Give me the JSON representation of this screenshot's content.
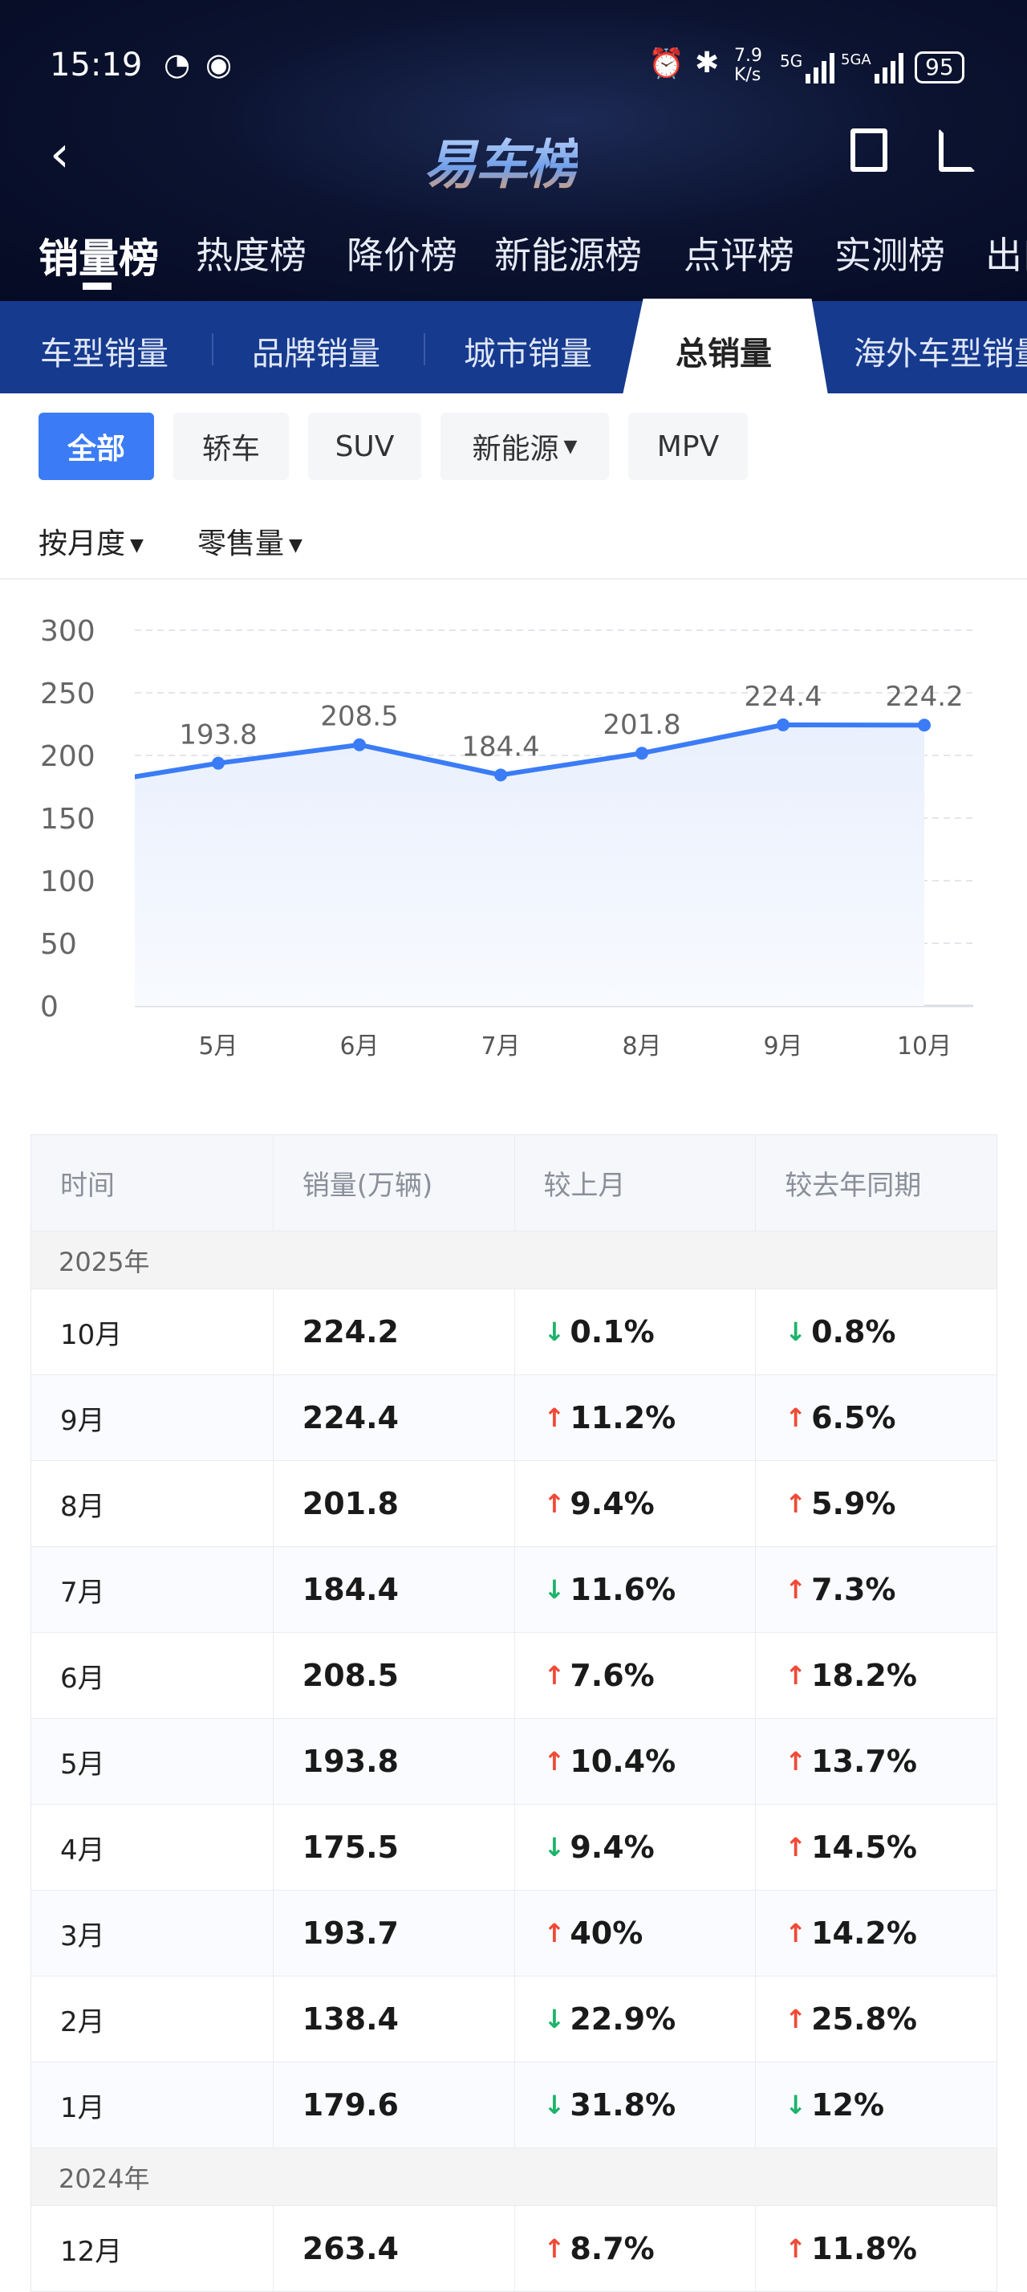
{
  "status_bar": {
    "time": "15:19",
    "net_speed_value": "7.9",
    "net_speed_unit": "K/s",
    "sig1": "5G",
    "sig2": "5GA",
    "battery": "95"
  },
  "header": {
    "title": "易车榜",
    "back_icon": "chevron-left-icon",
    "icons": [
      "edit-note-icon",
      "share-icon"
    ]
  },
  "main_tabs": [
    {
      "label": "销量榜",
      "active": true
    },
    {
      "label": "热度榜"
    },
    {
      "label": "降价榜"
    },
    {
      "label": "新能源榜"
    },
    {
      "label": "点评榜"
    },
    {
      "label": "实测榜"
    },
    {
      "label": "出口"
    }
  ],
  "sub_tabs": [
    {
      "label": "车型销量"
    },
    {
      "label": "品牌销量"
    },
    {
      "label": "城市销量"
    },
    {
      "label": "总销量",
      "active": true
    },
    {
      "label": "海外车型销量"
    }
  ],
  "filters": {
    "chips": [
      {
        "label": "全部",
        "active": true
      },
      {
        "label": "轿车"
      },
      {
        "label": "SUV"
      },
      {
        "label": "新能源",
        "dropdown": true
      },
      {
        "label": "MPV"
      }
    ],
    "period": "按月度",
    "metric": "零售量"
  },
  "colors": {
    "accent": "#3b7cf6",
    "line": "#3b7cf6",
    "up": "#f04a36",
    "down": "#1db36b",
    "header_bg": "#0b1330",
    "subbar_bg": "#163a8e"
  },
  "chart_data": {
    "type": "area",
    "categories": [
      "5月",
      "6月",
      "7月",
      "8月",
      "9月",
      "10月"
    ],
    "values": [
      193.8,
      208.5,
      184.4,
      201.8,
      224.4,
      224.2
    ],
    "previous_offscreen_value": 175.5,
    "yticks": [
      "300",
      "250",
      "200",
      "150",
      "100",
      "50",
      "0"
    ],
    "ylim": [
      0,
      300
    ],
    "grid": true,
    "data_labels": [
      "193.8",
      "208.5",
      "184.4",
      "201.8",
      "224.4",
      "224.2"
    ]
  },
  "table": {
    "headers": [
      "时间",
      "销量(万辆)",
      "较上月",
      "较去年同期"
    ],
    "groups": [
      {
        "year": "2025年",
        "rows": [
          {
            "month": "10月",
            "sales": "224.2",
            "mom": "0.1%",
            "mom_dir": "down",
            "yoy": "0.8%",
            "yoy_dir": "down"
          },
          {
            "month": "9月",
            "sales": "224.4",
            "mom": "11.2%",
            "mom_dir": "up",
            "yoy": "6.5%",
            "yoy_dir": "up"
          },
          {
            "month": "8月",
            "sales": "201.8",
            "mom": "9.4%",
            "mom_dir": "up",
            "yoy": "5.9%",
            "yoy_dir": "up"
          },
          {
            "month": "7月",
            "sales": "184.4",
            "mom": "11.6%",
            "mom_dir": "down",
            "yoy": "7.3%",
            "yoy_dir": "up"
          },
          {
            "month": "6月",
            "sales": "208.5",
            "mom": "7.6%",
            "mom_dir": "up",
            "yoy": "18.2%",
            "yoy_dir": "up"
          },
          {
            "month": "5月",
            "sales": "193.8",
            "mom": "10.4%",
            "mom_dir": "up",
            "yoy": "13.7%",
            "yoy_dir": "up"
          },
          {
            "month": "4月",
            "sales": "175.5",
            "mom": "9.4%",
            "mom_dir": "down",
            "yoy": "14.5%",
            "yoy_dir": "up"
          },
          {
            "month": "3月",
            "sales": "193.7",
            "mom": "40%",
            "mom_dir": "up",
            "yoy": "14.2%",
            "yoy_dir": "up"
          },
          {
            "month": "2月",
            "sales": "138.4",
            "mom": "22.9%",
            "mom_dir": "down",
            "yoy": "25.8%",
            "yoy_dir": "up"
          },
          {
            "month": "1月",
            "sales": "179.6",
            "mom": "31.8%",
            "mom_dir": "down",
            "yoy": "12%",
            "yoy_dir": "down"
          }
        ]
      },
      {
        "year": "2024年",
        "rows": [
          {
            "month": "12月",
            "sales": "263.4",
            "mom": "8.7%",
            "mom_dir": "up",
            "yoy": "11.8%",
            "yoy_dir": "up"
          }
        ]
      }
    ]
  }
}
